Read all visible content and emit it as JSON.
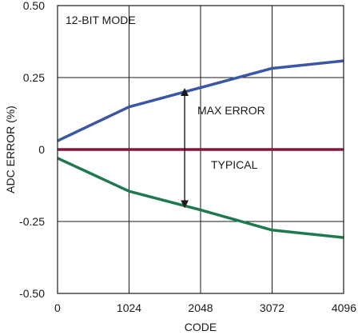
{
  "chart_data": {
    "type": "line",
    "annotation_mode": "12-BIT MODE",
    "xlabel": "CODE",
    "ylabel": "ADC ERROR (%)",
    "xlim": [
      0,
      4096
    ],
    "ylim": [
      -0.5,
      0.5
    ],
    "x_ticks": [
      0,
      1024,
      2048,
      3072,
      4096
    ],
    "x_tick_labels": [
      "0",
      "1024",
      "2048",
      "3072",
      "4096"
    ],
    "y_ticks": [
      0.5,
      0.25,
      0,
      -0.25,
      -0.5
    ],
    "y_tick_labels": [
      "0.50",
      "0.25",
      "0",
      "-0.25",
      "-0.50"
    ],
    "grid": true,
    "series": [
      {
        "key": "max-positive",
        "color": "#3a57a6",
        "x": [
          0,
          1024,
          2048,
          3072,
          4096
        ],
        "y": [
          0.03,
          0.148,
          0.215,
          0.282,
          0.308
        ]
      },
      {
        "key": "typical",
        "color": "#8a1538",
        "x": [
          0,
          4096
        ],
        "y": [
          0,
          0
        ]
      },
      {
        "key": "max-negative",
        "color": "#1e7a4e",
        "x": [
          0,
          1024,
          2048,
          3072,
          4096
        ],
        "y": [
          -0.03,
          -0.145,
          -0.21,
          -0.28,
          -0.306
        ]
      }
    ],
    "annotations": {
      "max_error_label": "MAX ERROR",
      "typical_label": "TYPICAL",
      "arrow": {
        "x": 1820,
        "y_top": 0.2,
        "y_bottom": -0.19
      }
    }
  }
}
